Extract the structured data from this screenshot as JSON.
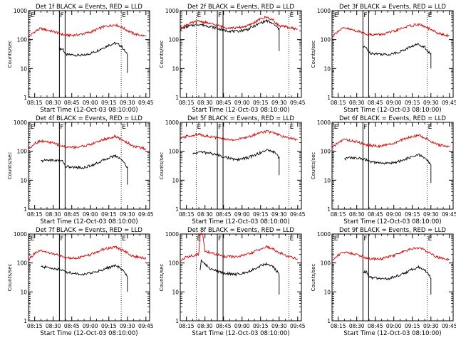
{
  "chart_data": [
    {
      "type": "line",
      "title": "Det 1f BLACK = Events, RED = LLD",
      "xlabel": "Start Time (12-Oct-03 08:10:00)",
      "ylabel": "Counts/sec",
      "yscale": "log",
      "ylim": [
        1,
        1000
      ],
      "x_ticks": [
        "08:15",
        "08:30",
        "08:45",
        "09:00",
        "09:15",
        "09:30",
        "09:45"
      ],
      "y_ticks": [
        "1",
        "10",
        "100",
        "1000"
      ],
      "grid": false,
      "markers": [
        {
          "label": "E",
          "time": "08:11"
        },
        {
          "label": "F",
          "time": "08:35"
        },
        {
          "label": "E",
          "time": "09:25"
        }
      ],
      "series": [
        {
          "color": "#000000",
          "time": [
            "08:35",
            "08:38",
            "08:40",
            "08:45",
            "08:55",
            "09:05",
            "09:15",
            "09:20",
            "09:25",
            "09:30",
            "09:30"
          ],
          "values": [
            48,
            47,
            30,
            30,
            28,
            40,
            65,
            75,
            60,
            30,
            7
          ]
        },
        {
          "color": "#dd0000",
          "time": [
            "08:10",
            "08:15",
            "08:20",
            "08:30",
            "08:40",
            "08:50",
            "09:00",
            "09:10",
            "09:20",
            "09:25",
            "09:35",
            "09:45"
          ],
          "values": [
            120,
            190,
            240,
            190,
            140,
            145,
            180,
            270,
            330,
            270,
            160,
            130
          ]
        }
      ]
    },
    {
      "type": "line",
      "title": "Det 2f BLACK = Events, RED = LLD",
      "xlabel": "Start Time (12-Oct-03 08:10:00)",
      "ylabel": "Counts/sec",
      "yscale": "log",
      "ylim": [
        1,
        1000
      ],
      "x_ticks": [
        "08:15",
        "08:30",
        "08:45",
        "09:00",
        "09:15",
        "09:30",
        "09:45"
      ],
      "y_ticks": [
        "1",
        "10",
        "100",
        "1000"
      ],
      "grid": false,
      "markers": [
        {
          "label": "E",
          "time": "08:23"
        },
        {
          "label": "F",
          "time": "08:40"
        },
        {
          "label": "E",
          "time": "09:38"
        }
      ],
      "series": [
        {
          "color": "#000000",
          "time": [
            "08:10",
            "08:15",
            "08:25",
            "08:35",
            "08:45",
            "08:55",
            "09:05",
            "09:15",
            "09:20",
            "09:25",
            "09:30",
            "09:30"
          ],
          "values": [
            230,
            280,
            340,
            280,
            210,
            190,
            230,
            380,
            450,
            350,
            230,
            40
          ]
        },
        {
          "color": "#dd0000",
          "time": [
            "08:10",
            "08:15",
            "08:25",
            "08:35",
            "08:45",
            "08:55",
            "09:05",
            "09:15",
            "09:20",
            "09:25",
            "09:30",
            "09:45"
          ],
          "values": [
            240,
            330,
            440,
            350,
            270,
            250,
            300,
            520,
            600,
            470,
            300,
            230
          ]
        }
      ]
    },
    {
      "type": "line",
      "title": "Det 3f BLACK = Events, RED = LLD",
      "xlabel": "Start Time (12-Oct-03 08:10:00)",
      "ylabel": "Counts/sec",
      "yscale": "log",
      "ylim": [
        1,
        1000
      ],
      "x_ticks": [
        "08:15",
        "08:30",
        "08:45",
        "09:00",
        "09:15",
        "09:30",
        "09:45"
      ],
      "y_ticks": [
        "1",
        "10",
        "100",
        "1000"
      ],
      "grid": false,
      "markers": [
        {
          "label": "E",
          "time": "08:11"
        },
        {
          "label": "F",
          "time": "08:35"
        },
        {
          "label": "E",
          "time": "09:27"
        }
      ],
      "series": [
        {
          "color": "#000000",
          "time": [
            "08:35",
            "08:38",
            "08:40",
            "08:45",
            "08:55",
            "09:05",
            "09:15",
            "09:20",
            "09:25",
            "09:30",
            "09:30"
          ],
          "values": [
            55,
            52,
            35,
            33,
            30,
            38,
            60,
            70,
            55,
            30,
            10
          ]
        },
        {
          "color": "#dd0000",
          "time": [
            "08:10",
            "08:15",
            "08:20",
            "08:30",
            "08:40",
            "08:50",
            "09:00",
            "09:10",
            "09:20",
            "09:25",
            "09:35",
            "09:45"
          ],
          "values": [
            130,
            200,
            250,
            200,
            150,
            150,
            190,
            280,
            340,
            280,
            170,
            130
          ]
        }
      ]
    },
    {
      "type": "line",
      "title": "Det 4f BLACK = Events, RED = LLD",
      "xlabel": "Start Time (12-Oct-03 08:10:00)",
      "ylabel": "Counts/sec",
      "yscale": "log",
      "ylim": [
        1,
        1000
      ],
      "x_ticks": [
        "08:15",
        "08:30",
        "08:45",
        "09:00",
        "09:15",
        "09:30",
        "09:45"
      ],
      "y_ticks": [
        "1",
        "10",
        "100",
        "1000"
      ],
      "grid": false,
      "markers": [
        {
          "label": "E",
          "time": "08:11"
        },
        {
          "label": "F",
          "time": "08:35"
        },
        {
          "label": "E",
          "time": "09:25"
        }
      ],
      "series": [
        {
          "color": "#000000",
          "time": [
            "08:20",
            "08:25",
            "08:35",
            "08:38",
            "08:40",
            "08:45",
            "08:55",
            "09:05",
            "09:15",
            "09:20",
            "09:25",
            "09:30",
            "09:30"
          ],
          "values": [
            45,
            50,
            48,
            45,
            30,
            28,
            27,
            38,
            60,
            70,
            55,
            28,
            7
          ]
        },
        {
          "color": "#dd0000",
          "time": [
            "08:10",
            "08:15",
            "08:20",
            "08:30",
            "08:40",
            "08:50",
            "09:00",
            "09:10",
            "09:20",
            "09:25",
            "09:35",
            "09:45"
          ],
          "values": [
            120,
            190,
            230,
            190,
            140,
            140,
            170,
            250,
            320,
            260,
            150,
            120
          ]
        }
      ]
    },
    {
      "type": "line",
      "title": "Det 5f BLACK = Events, RED = LLD",
      "xlabel": "Start Time (12-Oct-03 08:10:00)",
      "ylabel": "Counts/sec",
      "yscale": "log",
      "ylim": [
        1,
        1000
      ],
      "x_ticks": [
        "08:15",
        "08:30",
        "08:45",
        "09:00",
        "09:15",
        "09:30",
        "09:45"
      ],
      "y_ticks": [
        "1",
        "10",
        "100",
        "1000"
      ],
      "grid": false,
      "markers": [
        {
          "label": "E",
          "time": "08:23"
        },
        {
          "label": "F",
          "time": "08:40"
        },
        {
          "label": "E",
          "time": "09:38"
        }
      ],
      "series": [
        {
          "color": "#000000",
          "time": [
            "08:20",
            "08:25",
            "08:35",
            "08:45",
            "08:55",
            "09:05",
            "09:15",
            "09:20",
            "09:25",
            "09:30",
            "09:30"
          ],
          "values": [
            80,
            95,
            85,
            65,
            50,
            60,
            90,
            110,
            100,
            60,
            15
          ]
        },
        {
          "color": "#dd0000",
          "time": [
            "08:10",
            "08:15",
            "08:25",
            "08:35",
            "08:45",
            "08:55",
            "09:05",
            "09:15",
            "09:20",
            "09:25",
            "09:35",
            "09:45"
          ],
          "values": [
            270,
            330,
            380,
            320,
            260,
            250,
            310,
            450,
            500,
            430,
            300,
            260
          ]
        }
      ]
    },
    {
      "type": "line",
      "title": "Det 6f BLACK = Events, RED = LLD",
      "xlabel": "Start Time (12-Oct-03 08:10:00)",
      "ylabel": "Counts/sec",
      "yscale": "log",
      "ylim": [
        1,
        1000
      ],
      "x_ticks": [
        "08:15",
        "08:30",
        "08:45",
        "09:00",
        "09:15",
        "09:30",
        "09:45"
      ],
      "y_ticks": [
        "1",
        "10",
        "100",
        "1000"
      ],
      "grid": false,
      "markers": [
        {
          "label": "E",
          "time": "08:11"
        },
        {
          "label": "F",
          "time": "08:35"
        },
        {
          "label": "E",
          "time": "09:27"
        }
      ],
      "series": [
        {
          "color": "#000000",
          "time": [
            "08:20",
            "08:25",
            "08:35",
            "08:38",
            "08:40",
            "08:45",
            "08:55",
            "09:05",
            "09:15",
            "09:20",
            "09:25",
            "09:30",
            "09:30"
          ],
          "values": [
            55,
            60,
            55,
            50,
            45,
            40,
            38,
            45,
            65,
            75,
            60,
            35,
            8
          ]
        },
        {
          "color": "#dd0000",
          "time": [
            "08:10",
            "08:15",
            "08:20",
            "08:30",
            "08:40",
            "08:50",
            "09:00",
            "09:10",
            "09:20",
            "09:25",
            "09:35",
            "09:45"
          ],
          "values": [
            130,
            200,
            260,
            210,
            160,
            150,
            190,
            280,
            360,
            290,
            170,
            140
          ]
        }
      ]
    },
    {
      "type": "line",
      "title": "Det 7f BLACK = Events, RED = LLD",
      "xlabel": "Start Time (12-Oct-03 08:10:00)",
      "ylabel": "Counts/sec",
      "yscale": "log",
      "ylim": [
        1,
        1000
      ],
      "x_ticks": [
        "08:15",
        "08:30",
        "08:45",
        "09:00",
        "09:15",
        "09:30",
        "09:45"
      ],
      "y_ticks": [
        "1",
        "10",
        "100",
        "1000"
      ],
      "grid": false,
      "markers": [
        {
          "label": "E",
          "time": "08:11"
        },
        {
          "label": "F",
          "time": "08:35"
        },
        {
          "label": "E",
          "time": "09:25"
        }
      ],
      "series": [
        {
          "color": "#000000",
          "time": [
            "08:20",
            "08:25",
            "08:35",
            "08:40",
            "08:45",
            "08:55",
            "09:05",
            "09:15",
            "09:20",
            "09:25",
            "09:30",
            "09:30"
          ],
          "values": [
            75,
            70,
            60,
            50,
            45,
            40,
            50,
            70,
            80,
            65,
            35,
            10
          ]
        },
        {
          "color": "#dd0000",
          "time": [
            "08:10",
            "08:15",
            "08:20",
            "08:30",
            "08:40",
            "08:50",
            "09:00",
            "09:10",
            "09:20",
            "09:25",
            "09:35",
            "09:45"
          ],
          "values": [
            130,
            210,
            260,
            210,
            150,
            150,
            190,
            290,
            360,
            290,
            170,
            140
          ]
        }
      ]
    },
    {
      "type": "line",
      "title": "Det 8f BLACK = Events, RED = LLD",
      "xlabel": "Start Time (12-Oct-03 08:10:00)",
      "ylabel": "Counts/sec",
      "yscale": "log",
      "ylim": [
        1,
        1000
      ],
      "x_ticks": [
        "08:15",
        "08:30",
        "08:45",
        "09:00",
        "09:15",
        "09:30",
        "09:45"
      ],
      "y_ticks": [
        "1",
        "10",
        "100",
        "1000"
      ],
      "grid": false,
      "markers": [
        {
          "label": "E",
          "time": "08:23"
        },
        {
          "label": "F",
          "time": "08:40"
        },
        {
          "label": "E",
          "time": "09:38"
        }
      ],
      "series": [
        {
          "color": "#000000",
          "time": [
            "08:26",
            "08:27",
            "08:30",
            "08:35",
            "08:45",
            "08:55",
            "09:05",
            "09:15",
            "09:20",
            "09:25",
            "09:30",
            "09:30"
          ],
          "values": [
            60,
            120,
            90,
            60,
            45,
            40,
            50,
            80,
            95,
            75,
            40,
            8
          ]
        },
        {
          "color": "#dd0000",
          "time": [
            "08:10",
            "08:15",
            "08:25",
            "08:26",
            "08:28",
            "08:30",
            "08:35",
            "08:45",
            "08:55",
            "09:05",
            "09:15",
            "09:20",
            "09:25",
            "09:35",
            "09:45"
          ],
          "values": [
            120,
            160,
            200,
            1000,
            1000,
            260,
            220,
            170,
            160,
            200,
            300,
            360,
            300,
            180,
            140
          ]
        }
      ]
    },
    {
      "type": "line",
      "title": "Det 9f BLACK = Events, RED = LLD",
      "xlabel": "Start Time (12-Oct-03 08:10:00)",
      "ylabel": "Counts/sec",
      "yscale": "log",
      "ylim": [
        1,
        1000
      ],
      "x_ticks": [
        "08:15",
        "08:30",
        "08:45",
        "09:00",
        "09:15",
        "09:30",
        "09:45"
      ],
      "y_ticks": [
        "1",
        "10",
        "100",
        "1000"
      ],
      "grid": false,
      "markers": [
        {
          "label": "E",
          "time": "08:11"
        },
        {
          "label": "F",
          "time": "08:35"
        },
        {
          "label": "E",
          "time": "09:27"
        }
      ],
      "series": [
        {
          "color": "#000000",
          "time": [
            "08:35",
            "08:38",
            "08:40",
            "08:45",
            "08:55",
            "09:05",
            "09:15",
            "09:20",
            "09:25",
            "09:30",
            "09:30"
          ],
          "values": [
            50,
            48,
            32,
            30,
            28,
            38,
            60,
            72,
            58,
            30,
            8
          ]
        },
        {
          "color": "#dd0000",
          "time": [
            "08:10",
            "08:15",
            "08:20",
            "08:30",
            "08:40",
            "08:50",
            "09:00",
            "09:10",
            "09:20",
            "09:25",
            "09:35",
            "09:45"
          ],
          "values": [
            120,
            190,
            240,
            200,
            140,
            140,
            180,
            270,
            340,
            280,
            160,
            130
          ]
        }
      ]
    }
  ]
}
